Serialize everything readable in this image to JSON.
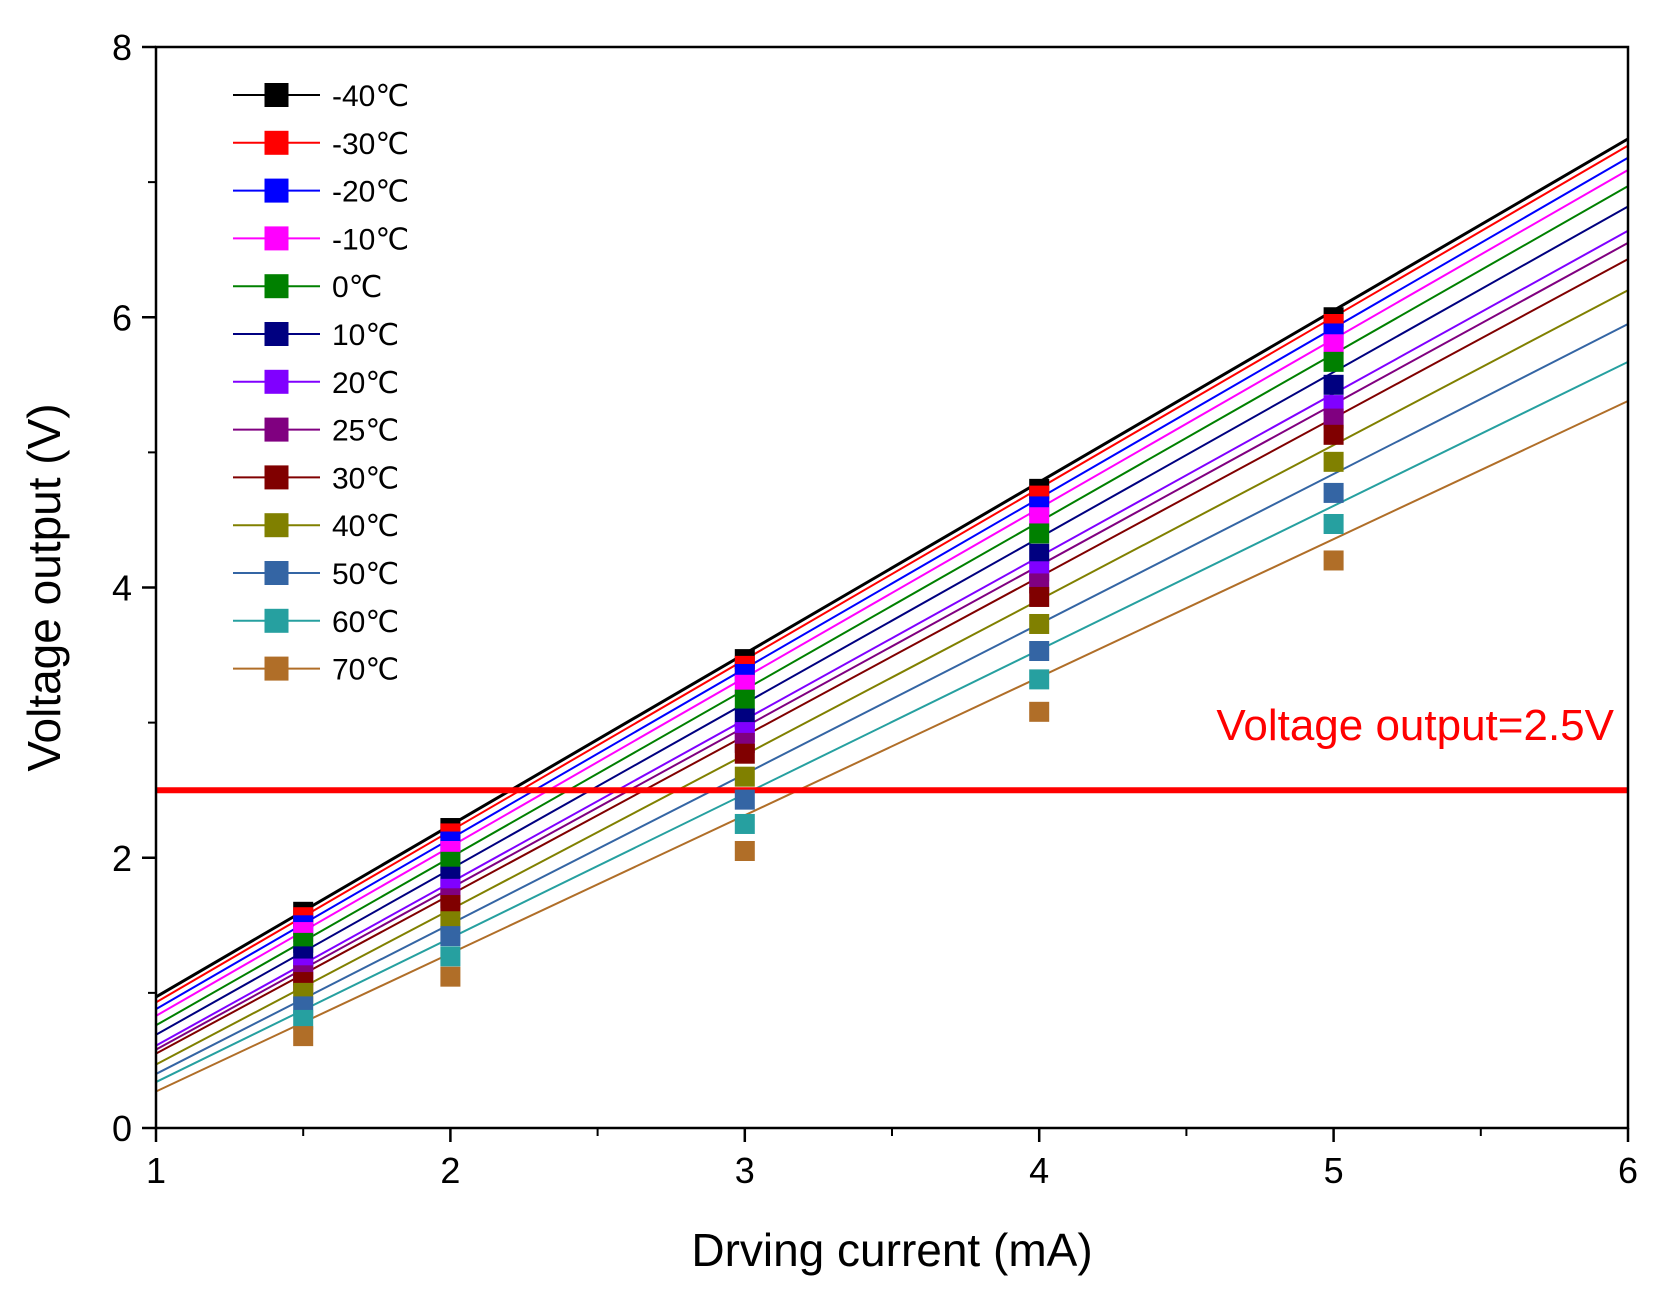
{
  "chart_data": {
    "type": "line",
    "xlabel": "Drving current (mA)",
    "ylabel": "Voltage output (V)",
    "xlim": [
      1,
      6
    ],
    "ylim": [
      0,
      8
    ],
    "xticks": [
      1,
      2,
      3,
      4,
      5,
      6
    ],
    "yticks": [
      0,
      2,
      4,
      6,
      8
    ],
    "x": [
      1.5,
      2,
      3,
      4,
      5
    ],
    "legend_position": "top-left",
    "grid": false,
    "series": [
      {
        "name": "-40℃",
        "color": "#000000",
        "values": [
          1.6,
          2.22,
          3.47,
          4.73,
          6.0
        ],
        "fit": [
          0.97,
          7.32
        ]
      },
      {
        "name": "-30℃",
        "color": "#ff0000",
        "values": [
          1.56,
          2.18,
          3.42,
          4.68,
          5.95
        ],
        "fit": [
          0.93,
          7.27
        ]
      },
      {
        "name": "-20℃",
        "color": "#0000ff",
        "values": [
          1.5,
          2.12,
          3.36,
          4.6,
          5.88
        ],
        "fit": [
          0.88,
          7.18
        ]
      },
      {
        "name": "-10℃",
        "color": "#ff00ff",
        "values": [
          1.45,
          2.05,
          3.28,
          4.52,
          5.8
        ],
        "fit": [
          0.83,
          7.09
        ]
      },
      {
        "name": "0℃",
        "color": "#008000",
        "values": [
          1.37,
          1.97,
          3.17,
          4.4,
          5.67
        ],
        "fit": [
          0.76,
          6.97
        ]
      },
      {
        "name": "10℃",
        "color": "#000080",
        "values": [
          1.27,
          1.86,
          3.03,
          4.25,
          5.5
        ],
        "fit": [
          0.69,
          6.82
        ]
      },
      {
        "name": "20℃",
        "color": "#8000ff",
        "values": [
          1.18,
          1.77,
          2.93,
          4.12,
          5.35
        ],
        "fit": [
          0.61,
          6.64
        ]
      },
      {
        "name": "25℃",
        "color": "#800080",
        "values": [
          1.13,
          1.7,
          2.85,
          4.03,
          5.25
        ],
        "fit": [
          0.58,
          6.55
        ]
      },
      {
        "name": "30℃",
        "color": "#800000",
        "values": [
          1.08,
          1.65,
          2.77,
          3.93,
          5.13
        ],
        "fit": [
          0.55,
          6.43
        ]
      },
      {
        "name": "40℃",
        "color": "#808000",
        "values": [
          1.0,
          1.53,
          2.6,
          3.73,
          4.93
        ],
        "fit": [
          0.47,
          6.2
        ]
      },
      {
        "name": "50℃",
        "color": "#3465a4",
        "values": [
          0.9,
          1.42,
          2.43,
          3.53,
          4.7
        ],
        "fit": [
          0.4,
          5.95
        ]
      },
      {
        "name": "60℃",
        "color": "#26a0a0",
        "values": [
          0.8,
          1.27,
          2.25,
          3.32,
          4.47
        ],
        "fit": [
          0.34,
          5.67
        ]
      },
      {
        "name": "70℃",
        "color": "#b06e28",
        "values": [
          0.68,
          1.12,
          2.05,
          3.08,
          4.2
        ],
        "fit": [
          0.27,
          5.38
        ]
      }
    ],
    "reference_line": {
      "y": 2.5,
      "color": "#ff0000",
      "label": "Voltage output=2.5V"
    }
  }
}
